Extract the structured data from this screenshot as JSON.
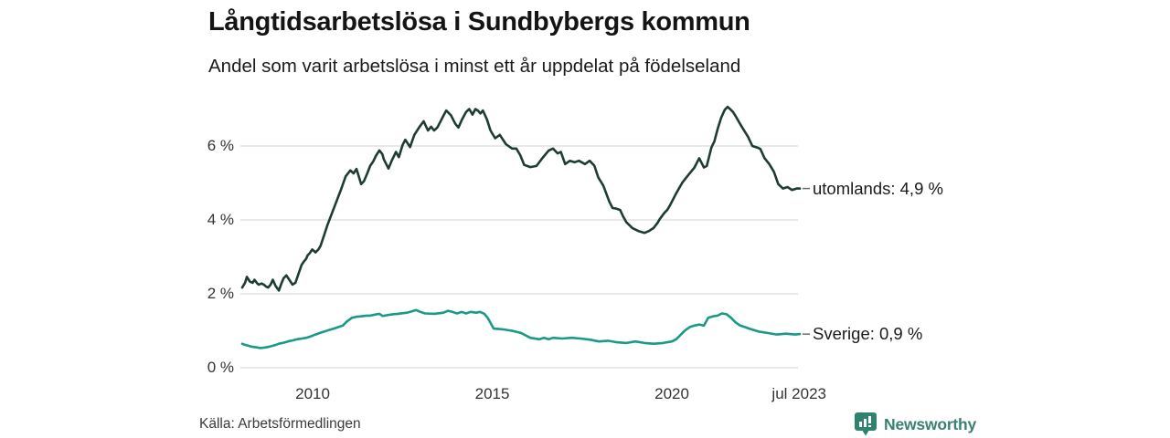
{
  "header": {
    "title": "Långtidsarbetslösa i Sundbybergs kommun",
    "subtitle": "Andel som varit arbetslösa i minst ett år uppdelat på födelseland"
  },
  "chart_data": {
    "type": "line",
    "title": "Långtidsarbetslösa i Sundbybergs kommun",
    "subtitle": "Andel som varit arbetslösa i minst ett år uppdelat på födelseland",
    "unit": "%",
    "grid": true,
    "legend_position": "right-of-line-end",
    "x_axis": {
      "range": [
        2008.04,
        2023.56
      ],
      "ticks": [
        {
          "t": 2010,
          "label": "2010"
        },
        {
          "t": 2015,
          "label": "2015"
        },
        {
          "t": 2020,
          "label": "2020"
        },
        {
          "t": 2023.54,
          "label": "jul 2023"
        }
      ]
    },
    "y_axis": {
      "range": [
        0,
        7.25
      ],
      "ticks": [
        {
          "v": 0,
          "label": "0 %"
        },
        {
          "v": 2,
          "label": "2 %"
        },
        {
          "v": 4,
          "label": "4 %"
        },
        {
          "v": 6,
          "label": "6 %"
        }
      ]
    },
    "series": [
      {
        "name": "utomlands",
        "label": "utomlands: 4,9 %",
        "last_value_label": "4,9 %",
        "color": "#1e3c32",
        "points": [
          [
            2008.04,
            2.17
          ],
          [
            2008.12,
            2.3
          ],
          [
            2008.17,
            2.46
          ],
          [
            2008.25,
            2.33
          ],
          [
            2008.33,
            2.3
          ],
          [
            2008.38,
            2.38
          ],
          [
            2008.46,
            2.28
          ],
          [
            2008.5,
            2.25
          ],
          [
            2008.58,
            2.28
          ],
          [
            2008.64,
            2.25
          ],
          [
            2008.7,
            2.2
          ],
          [
            2008.76,
            2.17
          ],
          [
            2008.83,
            2.25
          ],
          [
            2008.89,
            2.38
          ],
          [
            2008.97,
            2.21
          ],
          [
            2009.06,
            2.09
          ],
          [
            2009.12,
            2.25
          ],
          [
            2009.19,
            2.42
          ],
          [
            2009.27,
            2.5
          ],
          [
            2009.35,
            2.38
          ],
          [
            2009.44,
            2.25
          ],
          [
            2009.52,
            2.3
          ],
          [
            2009.61,
            2.55
          ],
          [
            2009.69,
            2.78
          ],
          [
            2009.76,
            2.88
          ],
          [
            2009.82,
            2.95
          ],
          [
            2009.86,
            3.04
          ],
          [
            2009.92,
            3.1
          ],
          [
            2009.99,
            3.2
          ],
          [
            2010.08,
            3.12
          ],
          [
            2010.16,
            3.2
          ],
          [
            2010.22,
            3.3
          ],
          [
            2010.29,
            3.5
          ],
          [
            2010.41,
            3.86
          ],
          [
            2010.54,
            4.19
          ],
          [
            2010.67,
            4.52
          ],
          [
            2010.8,
            4.85
          ],
          [
            2010.92,
            5.18
          ],
          [
            2011.05,
            5.34
          ],
          [
            2011.14,
            5.26
          ],
          [
            2011.22,
            5.38
          ],
          [
            2011.35,
            4.97
          ],
          [
            2011.43,
            5.05
          ],
          [
            2011.52,
            5.26
          ],
          [
            2011.6,
            5.46
          ],
          [
            2011.69,
            5.59
          ],
          [
            2011.77,
            5.75
          ],
          [
            2011.86,
            5.88
          ],
          [
            2011.94,
            5.78
          ],
          [
            2011.98,
            5.64
          ],
          [
            2012.11,
            5.39
          ],
          [
            2012.2,
            5.6
          ],
          [
            2012.32,
            5.84
          ],
          [
            2012.4,
            5.7
          ],
          [
            2012.5,
            6.02
          ],
          [
            2012.58,
            6.17
          ],
          [
            2012.71,
            5.97
          ],
          [
            2012.83,
            6.3
          ],
          [
            2012.96,
            6.5
          ],
          [
            2013.09,
            6.67
          ],
          [
            2013.21,
            6.42
          ],
          [
            2013.3,
            6.52
          ],
          [
            2013.38,
            6.42
          ],
          [
            2013.47,
            6.5
          ],
          [
            2013.55,
            6.65
          ],
          [
            2013.63,
            6.8
          ],
          [
            2013.72,
            6.96
          ],
          [
            2013.85,
            6.83
          ],
          [
            2013.97,
            6.6
          ],
          [
            2014.06,
            6.5
          ],
          [
            2014.15,
            6.7
          ],
          [
            2014.27,
            6.92
          ],
          [
            2014.36,
            7.0
          ],
          [
            2014.45,
            6.85
          ],
          [
            2014.53,
            7.0
          ],
          [
            2014.61,
            6.95
          ],
          [
            2014.67,
            6.88
          ],
          [
            2014.74,
            6.96
          ],
          [
            2014.85,
            6.72
          ],
          [
            2014.95,
            6.42
          ],
          [
            2015.08,
            6.21
          ],
          [
            2015.21,
            6.3
          ],
          [
            2015.38,
            6.05
          ],
          [
            2015.55,
            5.93
          ],
          [
            2015.67,
            5.93
          ],
          [
            2015.78,
            5.75
          ],
          [
            2015.89,
            5.49
          ],
          [
            2016.06,
            5.43
          ],
          [
            2016.23,
            5.46
          ],
          [
            2016.4,
            5.68
          ],
          [
            2016.57,
            5.88
          ],
          [
            2016.69,
            5.93
          ],
          [
            2016.82,
            5.8
          ],
          [
            2016.91,
            5.84
          ],
          [
            2017.03,
            5.51
          ],
          [
            2017.16,
            5.6
          ],
          [
            2017.29,
            5.56
          ],
          [
            2017.41,
            5.6
          ],
          [
            2017.58,
            5.51
          ],
          [
            2017.71,
            5.6
          ],
          [
            2017.84,
            5.47
          ],
          [
            2017.95,
            5.15
          ],
          [
            2018.09,
            4.93
          ],
          [
            2018.18,
            4.7
          ],
          [
            2018.26,
            4.49
          ],
          [
            2018.35,
            4.32
          ],
          [
            2018.43,
            4.31
          ],
          [
            2018.56,
            4.27
          ],
          [
            2018.64,
            4.1
          ],
          [
            2018.73,
            3.94
          ],
          [
            2018.9,
            3.78
          ],
          [
            2019.07,
            3.7
          ],
          [
            2019.24,
            3.65
          ],
          [
            2019.36,
            3.7
          ],
          [
            2019.49,
            3.78
          ],
          [
            2019.6,
            3.92
          ],
          [
            2019.66,
            4.02
          ],
          [
            2019.79,
            4.19
          ],
          [
            2019.87,
            4.27
          ],
          [
            2019.95,
            4.4
          ],
          [
            2020.12,
            4.72
          ],
          [
            2020.29,
            5.01
          ],
          [
            2020.46,
            5.22
          ],
          [
            2020.63,
            5.42
          ],
          [
            2020.76,
            5.67
          ],
          [
            2020.89,
            5.42
          ],
          [
            2020.97,
            5.46
          ],
          [
            2021.1,
            5.96
          ],
          [
            2021.18,
            6.12
          ],
          [
            2021.27,
            6.45
          ],
          [
            2021.37,
            6.76
          ],
          [
            2021.47,
            6.98
          ],
          [
            2021.55,
            7.06
          ],
          [
            2021.62,
            7.0
          ],
          [
            2021.7,
            6.92
          ],
          [
            2021.78,
            6.8
          ],
          [
            2021.86,
            6.66
          ],
          [
            2021.99,
            6.45
          ],
          [
            2022.12,
            6.25
          ],
          [
            2022.24,
            6.0
          ],
          [
            2022.37,
            5.96
          ],
          [
            2022.46,
            5.92
          ],
          [
            2022.58,
            5.67
          ],
          [
            2022.71,
            5.51
          ],
          [
            2022.84,
            5.3
          ],
          [
            2022.96,
            4.97
          ],
          [
            2023.09,
            4.85
          ],
          [
            2023.22,
            4.89
          ],
          [
            2023.34,
            4.81
          ],
          [
            2023.47,
            4.85
          ],
          [
            2023.56,
            4.85
          ]
        ]
      },
      {
        "name": "Sverige",
        "label": "Sverige: 0,9 %",
        "last_value_label": "0,9 %",
        "color": "#1a9a86",
        "points": [
          [
            2008.04,
            0.65
          ],
          [
            2008.12,
            0.62
          ],
          [
            2008.2,
            0.6
          ],
          [
            2008.3,
            0.57
          ],
          [
            2008.45,
            0.55
          ],
          [
            2008.55,
            0.53
          ],
          [
            2008.7,
            0.55
          ],
          [
            2008.8,
            0.57
          ],
          [
            2008.95,
            0.61
          ],
          [
            2009.06,
            0.65
          ],
          [
            2009.2,
            0.68
          ],
          [
            2009.31,
            0.71
          ],
          [
            2009.45,
            0.74
          ],
          [
            2009.57,
            0.77
          ],
          [
            2009.7,
            0.79
          ],
          [
            2009.82,
            0.81
          ],
          [
            2009.95,
            0.85
          ],
          [
            2010.08,
            0.9
          ],
          [
            2010.2,
            0.94
          ],
          [
            2010.33,
            0.98
          ],
          [
            2010.45,
            1.02
          ],
          [
            2010.59,
            1.06
          ],
          [
            2010.72,
            1.1
          ],
          [
            2010.84,
            1.14
          ],
          [
            2010.95,
            1.25
          ],
          [
            2011.09,
            1.35
          ],
          [
            2011.22,
            1.38
          ],
          [
            2011.35,
            1.39
          ],
          [
            2011.5,
            1.41
          ],
          [
            2011.6,
            1.41
          ],
          [
            2011.75,
            1.44
          ],
          [
            2011.86,
            1.46
          ],
          [
            2011.95,
            1.4
          ],
          [
            2012.11,
            1.43
          ],
          [
            2012.25,
            1.45
          ],
          [
            2012.37,
            1.46
          ],
          [
            2012.62,
            1.49
          ],
          [
            2012.75,
            1.52
          ],
          [
            2012.88,
            1.56
          ],
          [
            2013.0,
            1.51
          ],
          [
            2013.13,
            1.47
          ],
          [
            2013.38,
            1.46
          ],
          [
            2013.64,
            1.49
          ],
          [
            2013.77,
            1.54
          ],
          [
            2013.89,
            1.51
          ],
          [
            2014.02,
            1.47
          ],
          [
            2014.15,
            1.51
          ],
          [
            2014.27,
            1.47
          ],
          [
            2014.4,
            1.51
          ],
          [
            2014.55,
            1.49
          ],
          [
            2014.66,
            1.51
          ],
          [
            2014.78,
            1.46
          ],
          [
            2014.88,
            1.34
          ],
          [
            2015.04,
            1.06
          ],
          [
            2015.29,
            1.04
          ],
          [
            2015.55,
            1.0
          ],
          [
            2015.8,
            0.94
          ],
          [
            2016.06,
            0.81
          ],
          [
            2016.31,
            0.77
          ],
          [
            2016.44,
            0.81
          ],
          [
            2016.57,
            0.77
          ],
          [
            2016.69,
            0.81
          ],
          [
            2016.95,
            0.79
          ],
          [
            2017.2,
            0.81
          ],
          [
            2017.46,
            0.79
          ],
          [
            2017.71,
            0.76
          ],
          [
            2017.97,
            0.71
          ],
          [
            2018.22,
            0.73
          ],
          [
            2018.47,
            0.69
          ],
          [
            2018.73,
            0.67
          ],
          [
            2018.98,
            0.71
          ],
          [
            2019.24,
            0.67
          ],
          [
            2019.49,
            0.65
          ],
          [
            2019.75,
            0.67
          ],
          [
            2020.0,
            0.71
          ],
          [
            2020.12,
            0.77
          ],
          [
            2020.25,
            0.9
          ],
          [
            2020.38,
            1.02
          ],
          [
            2020.5,
            1.1
          ],
          [
            2020.63,
            1.14
          ],
          [
            2020.76,
            1.17
          ],
          [
            2020.89,
            1.14
          ],
          [
            2021.01,
            1.35
          ],
          [
            2021.14,
            1.39
          ],
          [
            2021.27,
            1.41
          ],
          [
            2021.39,
            1.47
          ],
          [
            2021.52,
            1.45
          ],
          [
            2021.65,
            1.35
          ],
          [
            2021.77,
            1.23
          ],
          [
            2021.9,
            1.14
          ],
          [
            2022.03,
            1.1
          ],
          [
            2022.15,
            1.06
          ],
          [
            2022.41,
            0.98
          ],
          [
            2022.66,
            0.94
          ],
          [
            2022.92,
            0.9
          ],
          [
            2023.17,
            0.92
          ],
          [
            2023.43,
            0.9
          ],
          [
            2023.56,
            0.91
          ]
        ]
      }
    ],
    "colors": {
      "grid": "#dcdcdc",
      "tick_dash": "#6b6b6b",
      "axis_text": "#333333"
    }
  },
  "footer": {
    "source": "Källa: Arbetsförmedlingen",
    "brand": "Newsworthy",
    "brand_color": "#3a8173",
    "brand_icon": "bar-chart-speech-bubble"
  }
}
